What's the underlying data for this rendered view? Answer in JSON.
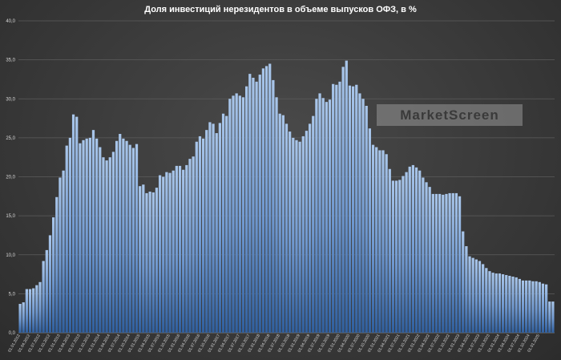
{
  "chart_data": {
    "type": "bar",
    "title": "Доля инвестиций нерезидентов в объеме выпусков ОФЗ, в %",
    "xlabel": "",
    "ylabel": "",
    "ylim": [
      0,
      40
    ],
    "yticks": [
      "0,0",
      "5,0",
      "10,0",
      "15,0",
      "20,0",
      "25,0",
      "30,0",
      "35,0",
      "40,0"
    ],
    "grid": true,
    "bar_color": "#7fa6d6",
    "tick_labels": [
      "01.01.2012",
      "01.04.2012",
      "01.07.2012",
      "01.10.2012",
      "01.01.2013",
      "01.04.2013",
      "01.07.2013",
      "01.10.2013",
      "01.01.2014",
      "01.04.2014",
      "01.07.2014",
      "01.10.2014",
      "01.01.2015",
      "01.04.2015",
      "01.07.2015",
      "01.10.2015",
      "01.01.2016",
      "01.04.2016",
      "01.07.2016",
      "01.10.2016",
      "01.01.2017",
      "01.04.2017",
      "01.07.2017",
      "01.10.2017",
      "01.01.2018",
      "01.04.2018",
      "01.07.2018",
      "01.10.2018",
      "01.01.2019",
      "01.04.2019",
      "01.07.2019",
      "01.10.2019",
      "01.01.2020",
      "01.04.2020",
      "01.07.2020",
      "01.10.2020",
      "01.01.2021",
      "01.04.2021",
      "01.07.2021",
      "01.10.2021",
      "01.01.2022",
      "01.04.2022",
      "01.07.2022",
      "01.10.2022",
      "01.01.2023",
      "01.04.2023",
      "01.07.2023",
      "01.10.2023",
      "01.01.2024",
      "01.04.2024",
      "01.07.2024",
      "01.10.2024",
      "01.01.2025"
    ],
    "values": [
      3.7,
      3.9,
      5.6,
      5.6,
      5.7,
      6.1,
      6.5,
      9.2,
      10.6,
      12.5,
      14.8,
      17.4,
      19.9,
      20.8,
      24.0,
      25.0,
      28.0,
      27.7,
      24.3,
      24.7,
      24.9,
      25.0,
      26.0,
      24.9,
      23.8,
      22.5,
      22.1,
      22.5,
      23.2,
      24.6,
      25.5,
      24.9,
      24.6,
      24.1,
      23.7,
      24.2,
      18.8,
      19.0,
      17.9,
      18.1,
      18.0,
      18.6,
      20.2,
      20.0,
      20.6,
      20.5,
      20.8,
      21.4,
      21.4,
      20.9,
      21.5,
      22.3,
      22.6,
      24.5,
      25.2,
      24.9,
      26.0,
      27.0,
      26.8,
      25.6,
      26.9,
      28.1,
      27.8,
      30.0,
      30.4,
      30.7,
      30.4,
      30.2,
      31.6,
      33.2,
      32.7,
      32.2,
      33.1,
      33.9,
      34.2,
      34.5,
      32.4,
      30.2,
      28.1,
      27.9,
      26.8,
      25.8,
      25.0,
      24.7,
      24.5,
      25.2,
      25.9,
      26.8,
      27.8,
      30.0,
      30.7,
      30.1,
      29.6,
      29.9,
      31.9,
      31.8,
      32.2,
      34.1,
      34.9,
      31.7,
      31.6,
      31.8,
      30.7,
      30.0,
      29.1,
      26.2,
      24.1,
      23.8,
      23.4,
      23.4,
      22.9,
      21.0,
      19.5,
      19.5,
      19.6,
      20.1,
      20.6,
      21.3,
      21.5,
      21.2,
      20.8,
      19.9,
      19.3,
      18.7,
      17.8,
      17.8,
      17.8,
      17.7,
      17.8,
      17.9,
      17.9,
      17.9,
      17.5,
      13.0,
      11.1,
      9.8,
      9.6,
      9.4,
      9.2,
      8.8,
      8.3,
      7.9,
      7.7,
      7.6,
      7.6,
      7.5,
      7.4,
      7.3,
      7.2,
      7.1,
      6.9,
      6.7,
      6.7,
      6.7,
      6.6,
      6.6,
      6.5,
      6.3,
      6.2,
      4.0,
      4.0
    ]
  },
  "watermark": "MarketScreen"
}
